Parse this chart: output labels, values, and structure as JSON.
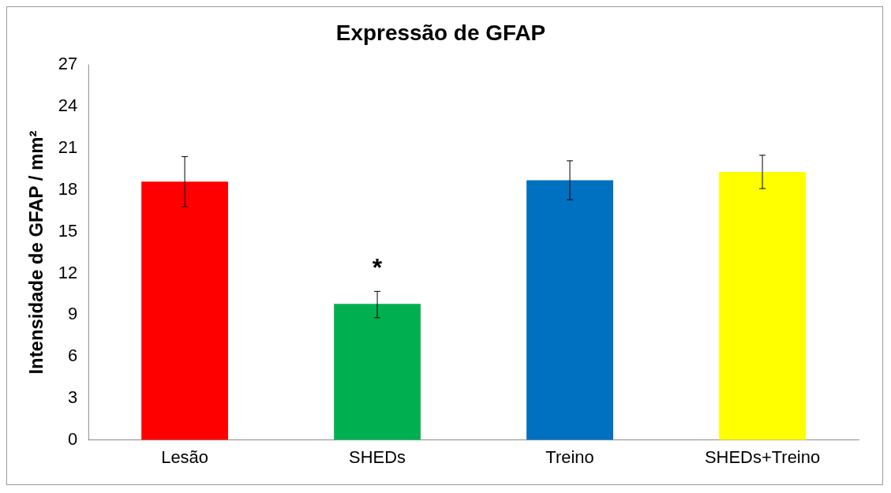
{
  "chart_data": {
    "type": "bar",
    "title": "Expressão de GFAP",
    "ylabel": "Intensidade de GFAP / mm²",
    "categories": [
      "Lesão",
      "SHEDs",
      "Treino",
      "SHEDs+Treino"
    ],
    "values": [
      18.6,
      9.8,
      18.7,
      19.3
    ],
    "colors": [
      "#ff0000",
      "#00b050",
      "#0070c0",
      "#ffff00"
    ],
    "errors": [
      [
        16.8,
        20.4
      ],
      [
        8.8,
        10.7
      ],
      [
        17.3,
        20.1
      ],
      [
        18.1,
        20.5
      ]
    ],
    "annotations": [
      "*"
    ],
    "ylim": [
      0,
      27
    ],
    "yticks": [
      0,
      3,
      6,
      9,
      12,
      15,
      18,
      21,
      24,
      27
    ],
    "grid": false,
    "legend": false
  }
}
